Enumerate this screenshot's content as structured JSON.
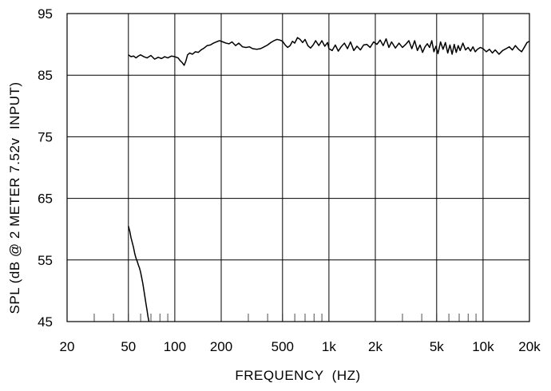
{
  "chart_data": {
    "type": "line",
    "xscale": "log",
    "xlim": [
      20,
      20000
    ],
    "ylim": [
      45,
      95
    ],
    "grid": true,
    "xlabel": "FREQUENCY  (HZ)",
    "ylabel": "SPL (dB @ 2 METER 7.52v  INPUT)",
    "xticks": [
      {
        "value": 20,
        "label": "20"
      },
      {
        "value": 50,
        "label": "50"
      },
      {
        "value": 100,
        "label": "100"
      },
      {
        "value": 200,
        "label": "200"
      },
      {
        "value": 500,
        "label": "500"
      },
      {
        "value": 1000,
        "label": "1k"
      },
      {
        "value": 2000,
        "label": "2k"
      },
      {
        "value": 5000,
        "label": "5k"
      },
      {
        "value": 10000,
        "label": "10k"
      },
      {
        "value": 20000,
        "label": "20k"
      }
    ],
    "yticks": [
      {
        "value": 45,
        "label": "45"
      },
      {
        "value": 55,
        "label": "55"
      },
      {
        "value": 65,
        "label": "65"
      },
      {
        "value": 75,
        "label": "75"
      },
      {
        "value": 85,
        "label": "85"
      },
      {
        "value": 95,
        "label": "95"
      }
    ],
    "series": [
      {
        "points": [
          [
            50,
            88.3
          ],
          [
            52,
            88.0
          ],
          [
            54,
            88.1
          ],
          [
            56,
            87.8
          ],
          [
            58,
            88.1
          ],
          [
            60,
            88.3
          ],
          [
            63,
            88.0
          ],
          [
            66,
            87.8
          ],
          [
            70,
            88.2
          ],
          [
            74,
            87.6
          ],
          [
            78,
            87.9
          ],
          [
            82,
            87.7
          ],
          [
            86,
            88.0
          ],
          [
            90,
            87.8
          ],
          [
            95,
            88.1
          ],
          [
            100,
            88.0
          ],
          [
            105,
            87.8
          ],
          [
            108,
            87.4
          ],
          [
            112,
            87.0
          ],
          [
            115,
            86.6
          ],
          [
            118,
            87.3
          ],
          [
            121,
            88.3
          ],
          [
            125,
            88.6
          ],
          [
            130,
            88.4
          ],
          [
            136,
            88.8
          ],
          [
            142,
            88.7
          ],
          [
            148,
            89.1
          ],
          [
            155,
            89.4
          ],
          [
            162,
            89.8
          ],
          [
            170,
            89.9
          ],
          [
            178,
            90.2
          ],
          [
            186,
            90.4
          ],
          [
            195,
            90.6
          ],
          [
            205,
            90.4
          ],
          [
            215,
            90.2
          ],
          [
            225,
            90.1
          ],
          [
            235,
            90.4
          ],
          [
            248,
            89.8
          ],
          [
            260,
            90.2
          ],
          [
            275,
            89.6
          ],
          [
            290,
            89.5
          ],
          [
            305,
            89.6
          ],
          [
            320,
            89.3
          ],
          [
            340,
            89.2
          ],
          [
            360,
            89.3
          ],
          [
            380,
            89.6
          ],
          [
            400,
            89.9
          ],
          [
            420,
            90.3
          ],
          [
            440,
            90.6
          ],
          [
            460,
            90.8
          ],
          [
            480,
            90.7
          ],
          [
            500,
            90.5
          ],
          [
            520,
            89.9
          ],
          [
            540,
            89.5
          ],
          [
            560,
            89.8
          ],
          [
            580,
            90.5
          ],
          [
            600,
            90.2
          ],
          [
            625,
            91.1
          ],
          [
            650,
            90.8
          ],
          [
            675,
            90.3
          ],
          [
            700,
            90.8
          ],
          [
            730,
            89.8
          ],
          [
            760,
            89.4
          ],
          [
            790,
            89.9
          ],
          [
            820,
            90.6
          ],
          [
            860,
            89.8
          ],
          [
            900,
            90.6
          ],
          [
            940,
            89.7
          ],
          [
            980,
            90.3
          ],
          [
            1000,
            89.3
          ],
          [
            1050,
            89.0
          ],
          [
            1100,
            89.9
          ],
          [
            1150,
            88.9
          ],
          [
            1200,
            89.6
          ],
          [
            1260,
            90.2
          ],
          [
            1320,
            89.3
          ],
          [
            1380,
            90.4
          ],
          [
            1450,
            89.0
          ],
          [
            1520,
            89.7
          ],
          [
            1600,
            89.1
          ],
          [
            1680,
            89.9
          ],
          [
            1760,
            90.0
          ],
          [
            1850,
            89.5
          ],
          [
            1950,
            90.4
          ],
          [
            2050,
            90.0
          ],
          [
            2150,
            90.7
          ],
          [
            2250,
            89.8
          ],
          [
            2350,
            90.9
          ],
          [
            2450,
            89.5
          ],
          [
            2550,
            90.4
          ],
          [
            2700,
            89.4
          ],
          [
            2850,
            90.2
          ],
          [
            3000,
            89.5
          ],
          [
            3150,
            90.0
          ],
          [
            3300,
            90.6
          ],
          [
            3450,
            89.3
          ],
          [
            3600,
            90.6
          ],
          [
            3750,
            89.0
          ],
          [
            3900,
            89.9
          ],
          [
            4050,
            88.7
          ],
          [
            4200,
            89.6
          ],
          [
            4350,
            90.1
          ],
          [
            4500,
            89.5
          ],
          [
            4650,
            90.6
          ],
          [
            4800,
            88.8
          ],
          [
            4950,
            89.7
          ],
          [
            5100,
            88.5
          ],
          [
            5300,
            90.4
          ],
          [
            5500,
            89.2
          ],
          [
            5700,
            90.3
          ],
          [
            5900,
            88.6
          ],
          [
            6100,
            89.9
          ],
          [
            6300,
            88.4
          ],
          [
            6500,
            90.0
          ],
          [
            6700,
            88.7
          ],
          [
            6900,
            89.8
          ],
          [
            7100,
            89.0
          ],
          [
            7400,
            90.2
          ],
          [
            7700,
            89.1
          ],
          [
            8000,
            89.5
          ],
          [
            8300,
            88.9
          ],
          [
            8600,
            89.6
          ],
          [
            8900,
            88.8
          ],
          [
            9200,
            89.2
          ],
          [
            9600,
            89.5
          ],
          [
            10000,
            89.3
          ],
          [
            10500,
            88.8
          ],
          [
            11000,
            89.2
          ],
          [
            11500,
            88.6
          ],
          [
            12000,
            89.1
          ],
          [
            12700,
            88.4
          ],
          [
            13400,
            89.0
          ],
          [
            14100,
            89.3
          ],
          [
            14800,
            89.6
          ],
          [
            15500,
            89.1
          ],
          [
            16200,
            89.8
          ],
          [
            17000,
            89.2
          ],
          [
            17800,
            88.8
          ],
          [
            18600,
            89.6
          ],
          [
            19300,
            90.3
          ],
          [
            20000,
            90.5
          ]
        ]
      },
      {
        "points": [
          [
            50,
            60.5
          ],
          [
            51,
            59.7
          ],
          [
            52,
            58.6
          ],
          [
            53,
            57.8
          ],
          [
            54,
            57.0
          ],
          [
            55,
            56.0
          ],
          [
            56,
            55.3
          ],
          [
            57,
            54.8
          ],
          [
            58,
            54.2
          ],
          [
            59,
            53.7
          ],
          [
            60,
            53.0
          ],
          [
            61,
            52.1
          ],
          [
            62,
            51.2
          ],
          [
            63,
            50.1
          ],
          [
            64,
            49.0
          ],
          [
            65,
            47.9
          ],
          [
            66,
            46.9
          ],
          [
            67,
            45.8
          ],
          [
            68,
            45.0
          ]
        ]
      }
    ]
  }
}
